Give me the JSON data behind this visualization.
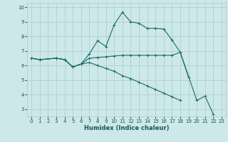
{
  "xlabel": "Humidex (Indice chaleur)",
  "bg_color": "#cce8e8",
  "grid_color": "#b0d0d0",
  "line_color": "#1a6b6b",
  "xlim": [
    -0.5,
    23.5
  ],
  "ylim": [
    2.5,
    10.3
  ],
  "xticks": [
    0,
    1,
    2,
    3,
    4,
    5,
    6,
    7,
    8,
    9,
    10,
    11,
    12,
    13,
    14,
    15,
    16,
    17,
    18,
    19,
    20,
    21,
    22,
    23
  ],
  "yticks": [
    3,
    4,
    5,
    6,
    7,
    8,
    9,
    10
  ],
  "series": [
    {
      "x": [
        0,
        1,
        3,
        4,
        5,
        6,
        7,
        8,
        9,
        10,
        11,
        12,
        13,
        14,
        15,
        16,
        17,
        18,
        20,
        21,
        22
      ],
      "y": [
        6.5,
        6.4,
        6.5,
        6.4,
        5.9,
        6.1,
        6.8,
        7.7,
        7.3,
        8.8,
        9.65,
        9.0,
        8.9,
        8.55,
        8.55,
        8.5,
        7.75,
        6.9,
        3.6,
        3.9,
        2.65
      ]
    },
    {
      "x": [
        0,
        1,
        3,
        4,
        5,
        6,
        7,
        8,
        9,
        10,
        11,
        12,
        13,
        14,
        15,
        16,
        17,
        18,
        19,
        20
      ],
      "y": [
        6.5,
        6.4,
        6.5,
        6.4,
        5.9,
        6.1,
        6.5,
        6.55,
        6.6,
        6.65,
        6.7,
        6.7,
        6.7,
        6.7,
        6.7,
        6.7,
        6.7,
        6.9,
        5.2,
        null
      ]
    },
    {
      "x": [
        0,
        1,
        3,
        4,
        5,
        6,
        7,
        8,
        9,
        10,
        11,
        12,
        13,
        14,
        15,
        16,
        17,
        18,
        19,
        20
      ],
      "y": [
        6.5,
        6.4,
        6.5,
        6.4,
        5.9,
        6.1,
        6.2,
        6.0,
        5.8,
        5.6,
        5.3,
        5.1,
        4.85,
        4.6,
        4.35,
        4.1,
        3.85,
        3.6,
        null,
        null
      ]
    }
  ]
}
